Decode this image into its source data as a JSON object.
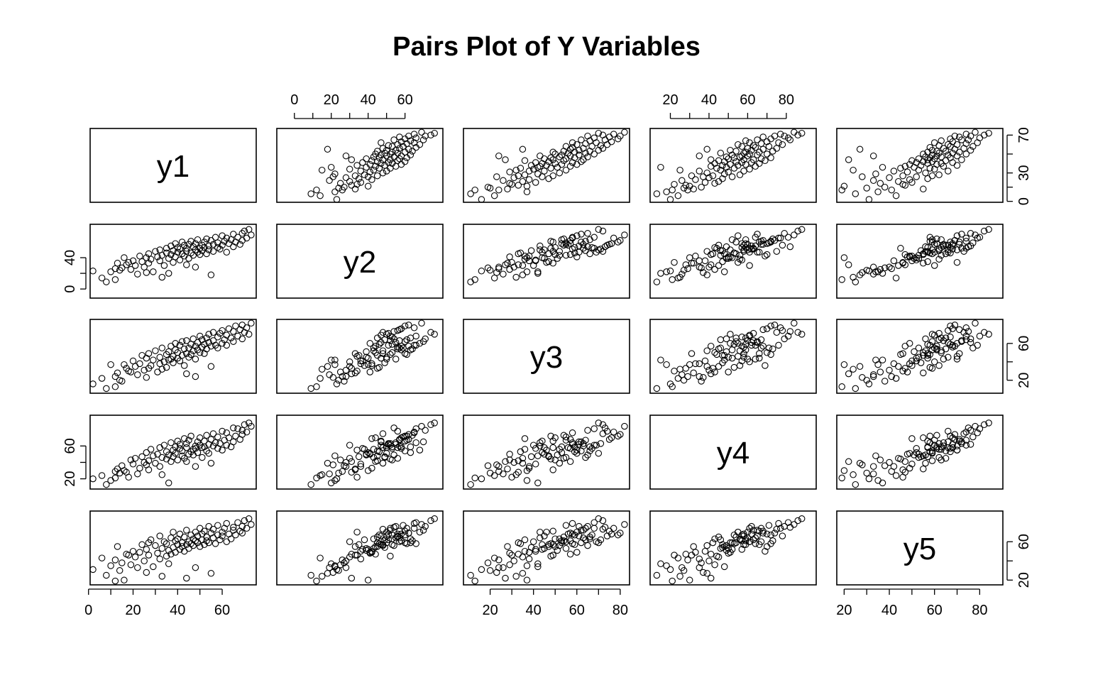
{
  "chart_data": {
    "type": "scatter",
    "chart_kind": "pairs",
    "title": "Pairs Plot of Y Variables",
    "variables": [
      "y1",
      "y2",
      "y3",
      "y4",
      "y5"
    ],
    "ranges": {
      "y1": [
        2,
        74
      ],
      "y2": [
        -8,
        79
      ],
      "y3": [
        9,
        83
      ],
      "y4": [
        11,
        94
      ],
      "y5": [
        18,
        89
      ]
    },
    "ticks": {
      "y1": [
        "0",
        "20",
        "40",
        "60"
      ],
      "y2": [
        "0",
        "20",
        "40",
        "60"
      ],
      "y3": [
        "20",
        "40",
        "60",
        "80"
      ],
      "y4": [
        "20",
        "40",
        "60",
        "80"
      ],
      "y5": [
        "20",
        "40",
        "60",
        "80"
      ]
    },
    "side_ticks": {
      "y1": [
        "0",
        "30",
        "70"
      ],
      "y2": [
        "0",
        "40"
      ],
      "y3": [
        "20",
        "60"
      ],
      "y4": [
        "20",
        "60"
      ],
      "y5": [
        "20",
        "60"
      ]
    },
    "grid": false,
    "n_points": 100,
    "points": [
      [
        2,
        23,
        16,
        20,
        31
      ],
      [
        6,
        14,
        22,
        24,
        43
      ],
      [
        8,
        9,
        11,
        13,
        25
      ],
      [
        10,
        22,
        37,
        18,
        35
      ],
      [
        12,
        26,
        24,
        29,
        41
      ],
      [
        13,
        33,
        28,
        32,
        55
      ],
      [
        15,
        27,
        19,
        36,
        38
      ],
      [
        17,
        31,
        33,
        28,
        47
      ],
      [
        19,
        25,
        29,
        43,
        36
      ],
      [
        20,
        36,
        41,
        38,
        50
      ],
      [
        21,
        30,
        35,
        45,
        44
      ],
      [
        22,
        19,
        26,
        26,
        33
      ],
      [
        23,
        42,
        38,
        33,
        49
      ],
      [
        24,
        35,
        47,
        47,
        57
      ],
      [
        25,
        28,
        31,
        40,
        40
      ],
      [
        26,
        40,
        44,
        52,
        52
      ],
      [
        27,
        45,
        33,
        42,
        59
      ],
      [
        27,
        33,
        49,
        31,
        46
      ],
      [
        28,
        38,
        36,
        56,
        62
      ],
      [
        29,
        22,
        42,
        48,
        34
      ],
      [
        30,
        48,
        52,
        39,
        56
      ],
      [
        31,
        41,
        29,
        50,
        48
      ],
      [
        32,
        50,
        45,
        58,
        66
      ],
      [
        32,
        36,
        38,
        35,
        42
      ],
      [
        33,
        43,
        55,
        46,
        53
      ],
      [
        34,
        30,
        40,
        61,
        60
      ],
      [
        35,
        52,
        48,
        44,
        45
      ],
      [
        35,
        46,
        34,
        53,
        58
      ],
      [
        36,
        39,
        51,
        49,
        51
      ],
      [
        37,
        55,
        43,
        64,
        64
      ],
      [
        37,
        44,
        57,
        41,
        47
      ],
      [
        38,
        34,
        46,
        55,
        70
      ],
      [
        38,
        49,
        39,
        47,
        54
      ],
      [
        39,
        58,
        53,
        59,
        61
      ],
      [
        39,
        41,
        60,
        51,
        49
      ],
      [
        40,
        47,
        44,
        66,
        57
      ],
      [
        40,
        53,
        50,
        43,
        63
      ],
      [
        41,
        37,
        41,
        57,
        52
      ],
      [
        41,
        51,
        58,
        62,
        68
      ],
      [
        42,
        45,
        47,
        48,
        55
      ],
      [
        42,
        60,
        62,
        54,
        59
      ],
      [
        43,
        42,
        36,
        69,
        50
      ],
      [
        43,
        56,
        54,
        45,
        65
      ],
      [
        44,
        48,
        49,
        58,
        57
      ],
      [
        44,
        52,
        63,
        63,
        72
      ],
      [
        45,
        39,
        45,
        50,
        53
      ],
      [
        45,
        57,
        55,
        67,
        60
      ],
      [
        46,
        46,
        59,
        53,
        67
      ],
      [
        46,
        61,
        48,
        72,
        58
      ],
      [
        47,
        43,
        52,
        56,
        63
      ],
      [
        47,
        54,
        65,
        49,
        56
      ],
      [
        48,
        50,
        43,
        60,
        70
      ],
      [
        48,
        58,
        57,
        57,
        61
      ],
      [
        49,
        47,
        61,
        65,
        66
      ],
      [
        49,
        63,
        53,
        52,
        59
      ],
      [
        50,
        52,
        68,
        61,
        74
      ],
      [
        50,
        44,
        50,
        70,
        55
      ],
      [
        51,
        56,
        56,
        58,
        68
      ],
      [
        51,
        49,
        64,
        46,
        62
      ],
      [
        52,
        60,
        49,
        66,
        71
      ],
      [
        52,
        53,
        59,
        59,
        57
      ],
      [
        53,
        45,
        66,
        54,
        65
      ],
      [
        53,
        64,
        54,
        73,
        61
      ],
      [
        54,
        55,
        61,
        62,
        76
      ],
      [
        54,
        50,
        70,
        51,
        59
      ],
      [
        55,
        62,
        57,
        68,
        69
      ],
      [
        56,
        57,
        63,
        60,
        64
      ],
      [
        56,
        48,
        72,
        75,
        73
      ],
      [
        57,
        66,
        58,
        64,
        58
      ],
      [
        58,
        53,
        67,
        57,
        67
      ],
      [
        58,
        59,
        55,
        71,
        77
      ],
      [
        59,
        51,
        71,
        63,
        62
      ],
      [
        60,
        68,
        60,
        55,
        70
      ],
      [
        60,
        56,
        74,
        78,
        66
      ],
      [
        61,
        61,
        64,
        67,
        74
      ],
      [
        62,
        47,
        69,
        61,
        60
      ],
      [
        62,
        65,
        58,
        76,
        79
      ],
      [
        63,
        58,
        76,
        70,
        68
      ],
      [
        64,
        63,
        66,
        59,
        63
      ],
      [
        65,
        54,
        73,
        82,
        75
      ],
      [
        65,
        70,
        62,
        65,
        72
      ],
      [
        66,
        60,
        79,
        72,
        67
      ],
      [
        67,
        66,
        68,
        81,
        80
      ],
      [
        68,
        57,
        75,
        68,
        71
      ],
      [
        69,
        71,
        65,
        79,
        76
      ],
      [
        69,
        62,
        80,
        74,
        69
      ],
      [
        70,
        74,
        72,
        86,
        82
      ],
      [
        71,
        65,
        77,
        77,
        74
      ],
      [
        72,
        76,
        70,
        88,
        84
      ],
      [
        73,
        69,
        82,
        84,
        78
      ],
      [
        14,
        24,
        20,
        27,
        30
      ],
      [
        18,
        34,
        30,
        22,
        46
      ],
      [
        26,
        21,
        23,
        37,
        28
      ],
      [
        33,
        15,
        32,
        25,
        24
      ],
      [
        44,
        31,
        27,
        41,
        22
      ],
      [
        16,
        40,
        37,
        30,
        20
      ],
      [
        36,
        20,
        42,
        15,
        37
      ],
      [
        48,
        28,
        24,
        35,
        33
      ],
      [
        55,
        18,
        35,
        39,
        27
      ],
      [
        12,
        12,
        13,
        21,
        19
      ]
    ]
  }
}
